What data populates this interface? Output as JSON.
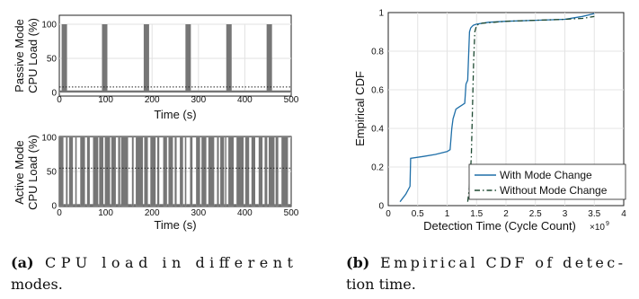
{
  "chart_data": [
    {
      "type": "line",
      "panel": "top",
      "xlabel": "Time (s)",
      "ylabel_lines": [
        "Passive Mode",
        "CPU Load (%)"
      ],
      "xlim": [
        0,
        500
      ],
      "ylim": [
        0,
        100
      ],
      "xticks": [
        0,
        100,
        200,
        300,
        400,
        500
      ],
      "yticks": [
        0,
        50,
        100
      ],
      "threshold": 8,
      "baseline": 3,
      "spikes": [
        5,
        92,
        182,
        272,
        360,
        447
      ],
      "color": "#767676"
    },
    {
      "type": "line",
      "panel": "bottom",
      "xlabel": "Time (s)",
      "ylabel_lines": [
        "Active Mode",
        "CPU Load (%)"
      ],
      "xlim": [
        0,
        500
      ],
      "ylim": [
        0,
        100
      ],
      "xticks": [
        0,
        100,
        200,
        300,
        400,
        500
      ],
      "yticks": [
        0,
        50,
        100
      ],
      "threshold": 55,
      "color": "#767676"
    },
    {
      "type": "line",
      "panel": "cdf",
      "xlabel": "Detection Time (Cycle Count)",
      "x_multiplier": "×10",
      "x_multiplier_exp": "9",
      "ylabel": "Empirical CDF",
      "xlim": [
        0,
        4
      ],
      "ylim": [
        0,
        1
      ],
      "xticks": [
        "0",
        "0.5",
        "1",
        "1.5",
        "2",
        "2.5",
        "3",
        "3.5",
        "4"
      ],
      "yticks": [
        "0",
        "0.2",
        "0.4",
        "0.6",
        "0.8",
        "1"
      ],
      "legend_position": "bottom-right",
      "series": [
        {
          "name": "With Mode Change",
          "color": "#1f6fa8",
          "dash": "solid",
          "x": [
            0.2,
            0.3,
            0.37,
            0.38,
            0.6,
            0.8,
            1.0,
            1.05,
            1.08,
            1.1,
            1.12,
            1.15,
            1.2,
            1.25,
            1.3,
            1.32,
            1.35,
            1.38,
            1.4,
            1.43,
            1.45,
            1.5,
            1.7,
            2.0,
            2.5,
            3.0,
            3.3,
            3.5
          ],
          "y": [
            0.02,
            0.06,
            0.1,
            0.245,
            0.255,
            0.265,
            0.28,
            0.29,
            0.4,
            0.45,
            0.47,
            0.5,
            0.51,
            0.52,
            0.53,
            0.63,
            0.65,
            0.9,
            0.92,
            0.93,
            0.935,
            0.94,
            0.95,
            0.955,
            0.96,
            0.965,
            0.98,
            0.995
          ]
        },
        {
          "name": "Without Mode Change",
          "color": "#1e4a32",
          "dash": "dashdot",
          "x": [
            1.35,
            1.38,
            1.41,
            1.43,
            1.45,
            1.47,
            1.5,
            1.6,
            1.8,
            2.0,
            2.5,
            3.0,
            3.3,
            3.5
          ],
          "y": [
            0.02,
            0.1,
            0.25,
            0.5,
            0.75,
            0.9,
            0.935,
            0.945,
            0.95,
            0.955,
            0.96,
            0.965,
            0.97,
            0.98
          ]
        }
      ]
    }
  ],
  "captions": {
    "a_label": "(a)",
    "a_line1": "CPU load in different",
    "a_line2": "modes.",
    "b_label": "(b)",
    "b_line1": "Empirical CDF of detec-",
    "b_line2": "tion time."
  }
}
